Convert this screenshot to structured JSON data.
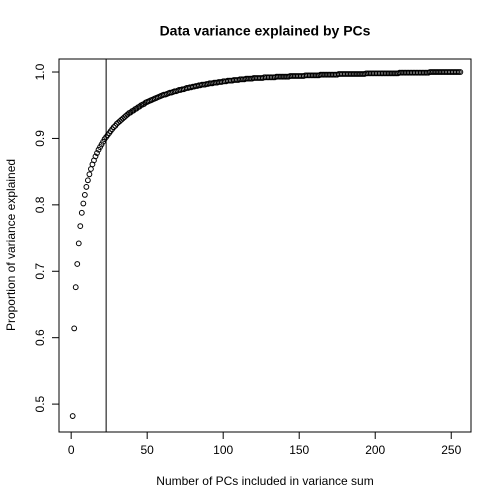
{
  "chart_data": {
    "type": "scatter",
    "title": "Data variance explained by PCs",
    "xlabel": "Number of PCs included in variance sum",
    "ylabel": "Proportion of variance explained",
    "xlim": [
      -8,
      263
    ],
    "ylim": [
      0.458,
      1.0196
    ],
    "xticks": [
      0,
      50,
      100,
      150,
      200,
      250
    ],
    "yticks": [
      0.5,
      0.6,
      0.7,
      0.8,
      0.9,
      {
        "value": 1,
        "label": "1.0"
      }
    ],
    "vline": 23,
    "color": "#000000",
    "x": [
      1,
      2,
      3,
      4,
      5,
      6,
      7,
      8,
      9,
      10,
      11,
      12,
      13,
      14,
      15,
      16,
      17,
      18,
      19,
      20,
      21,
      22,
      23,
      24,
      25,
      26,
      27,
      28,
      29,
      30,
      31,
      32,
      33,
      34,
      35,
      36,
      37,
      38,
      39,
      40,
      41,
      42,
      43,
      44,
      45,
      46,
      47,
      48,
      49,
      50,
      51,
      52,
      53,
      54,
      55,
      56,
      57,
      58,
      59,
      60,
      61,
      62,
      63,
      64,
      65,
      66,
      67,
      68,
      69,
      70,
      71,
      72,
      73,
      74,
      75,
      76,
      77,
      78,
      79,
      80,
      81,
      82,
      83,
      84,
      85,
      86,
      87,
      88,
      89,
      90,
      91,
      92,
      93,
      94,
      95,
      96,
      97,
      98,
      99,
      100,
      101,
      102,
      103,
      104,
      105,
      106,
      107,
      108,
      109,
      110,
      111,
      112,
      113,
      114,
      115,
      116,
      117,
      118,
      119,
      120,
      121,
      122,
      123,
      124,
      125,
      126,
      127,
      128,
      129,
      130,
      131,
      132,
      133,
      134,
      135,
      136,
      137,
      138,
      139,
      140,
      141,
      142,
      143,
      144,
      145,
      146,
      147,
      148,
      149,
      150,
      151,
      152,
      153,
      154,
      155,
      156,
      157,
      158,
      159,
      160,
      161,
      162,
      163,
      164,
      165,
      166,
      167,
      168,
      169,
      170,
      171,
      172,
      173,
      174,
      175,
      176,
      177,
      178,
      179,
      180,
      181,
      182,
      183,
      184,
      185,
      186,
      187,
      188,
      189,
      190,
      191,
      192,
      193,
      194,
      195,
      196,
      197,
      198,
      199,
      200,
      201,
      202,
      203,
      204,
      205,
      206,
      207,
      208,
      209,
      210,
      211,
      212,
      213,
      214,
      215,
      216,
      217,
      218,
      219,
      220,
      221,
      222,
      223,
      224,
      225,
      226,
      227,
      228,
      229,
      230,
      231,
      232,
      233,
      234,
      235,
      236,
      237,
      238,
      239,
      240,
      241,
      242,
      243,
      244,
      245,
      246,
      247,
      248,
      249,
      250,
      251,
      252,
      253,
      254,
      255,
      256
    ],
    "values": [
      0.482,
      0.614,
      0.676,
      0.711,
      0.742,
      0.768,
      0.788,
      0.802,
      0.815,
      0.827,
      0.837,
      0.846,
      0.854,
      0.861,
      0.867,
      0.873,
      0.878,
      0.883,
      0.887,
      0.891,
      0.895,
      0.899,
      0.902,
      0.905,
      0.908,
      0.911,
      0.914,
      0.917,
      0.919,
      0.922,
      0.924,
      0.926,
      0.928,
      0.93,
      0.932,
      0.934,
      0.936,
      0.938,
      0.939,
      0.941,
      0.942,
      0.944,
      0.945,
      0.947,
      0.948,
      0.95,
      0.951,
      0.952,
      0.954,
      0.955,
      0.956,
      0.957,
      0.958,
      0.959,
      0.96,
      0.961,
      0.962,
      0.963,
      0.964,
      0.965,
      0.966,
      0.966,
      0.967,
      0.968,
      0.969,
      0.969,
      0.97,
      0.971,
      0.971,
      0.972,
      0.973,
      0.973,
      0.974,
      0.974,
      0.975,
      0.976,
      0.976,
      0.977,
      0.977,
      0.978,
      0.978,
      0.979,
      0.979,
      0.98,
      0.98,
      0.981,
      0.981,
      0.981,
      0.982,
      0.982,
      0.983,
      0.983,
      0.983,
      0.984,
      0.984,
      0.984,
      0.985,
      0.985,
      0.985,
      0.986,
      0.986,
      0.986,
      0.987,
      0.987,
      0.987,
      0.987,
      0.988,
      0.988,
      0.988,
      0.988,
      0.989,
      0.989,
      0.989,
      0.989,
      0.99,
      0.99,
      0.99,
      0.99,
      0.99,
      0.991,
      0.991,
      0.991,
      0.991,
      0.991,
      0.991,
      0.991,
      0.992,
      0.992,
      0.992,
      0.992,
      0.992,
      0.992,
      0.992,
      0.992,
      0.993,
      0.993,
      0.993,
      0.993,
      0.993,
      0.993,
      0.993,
      0.993,
      0.993,
      0.994,
      0.994,
      0.994,
      0.994,
      0.994,
      0.994,
      0.994,
      0.994,
      0.994,
      0.994,
      0.995,
      0.995,
      0.995,
      0.995,
      0.995,
      0.995,
      0.995,
      0.995,
      0.995,
      0.995,
      0.996,
      0.996,
      0.996,
      0.996,
      0.996,
      0.996,
      0.996,
      0.996,
      0.996,
      0.996,
      0.996,
      0.996,
      0.997,
      0.997,
      0.997,
      0.997,
      0.997,
      0.997,
      0.997,
      0.997,
      0.997,
      0.997,
      0.997,
      0.997,
      0.997,
      0.997,
      0.997,
      0.997,
      0.997,
      0.997,
      0.998,
      0.998,
      0.998,
      0.998,
      0.998,
      0.998,
      0.998,
      0.998,
      0.998,
      0.998,
      0.998,
      0.998,
      0.998,
      0.998,
      0.998,
      0.998,
      0.998,
      0.998,
      0.998,
      0.998,
      0.998,
      0.998,
      0.999,
      0.999,
      0.999,
      0.999,
      0.999,
      0.999,
      0.999,
      0.999,
      0.999,
      0.999,
      0.999,
      0.999,
      0.999,
      0.999,
      0.999,
      0.999,
      0.999,
      0.999,
      0.999,
      0.999,
      1,
      1,
      1,
      1,
      1,
      1,
      1,
      1,
      1,
      1,
      1,
      1,
      1,
      1,
      1,
      1,
      1,
      1,
      1,
      1,
      1
    ]
  }
}
